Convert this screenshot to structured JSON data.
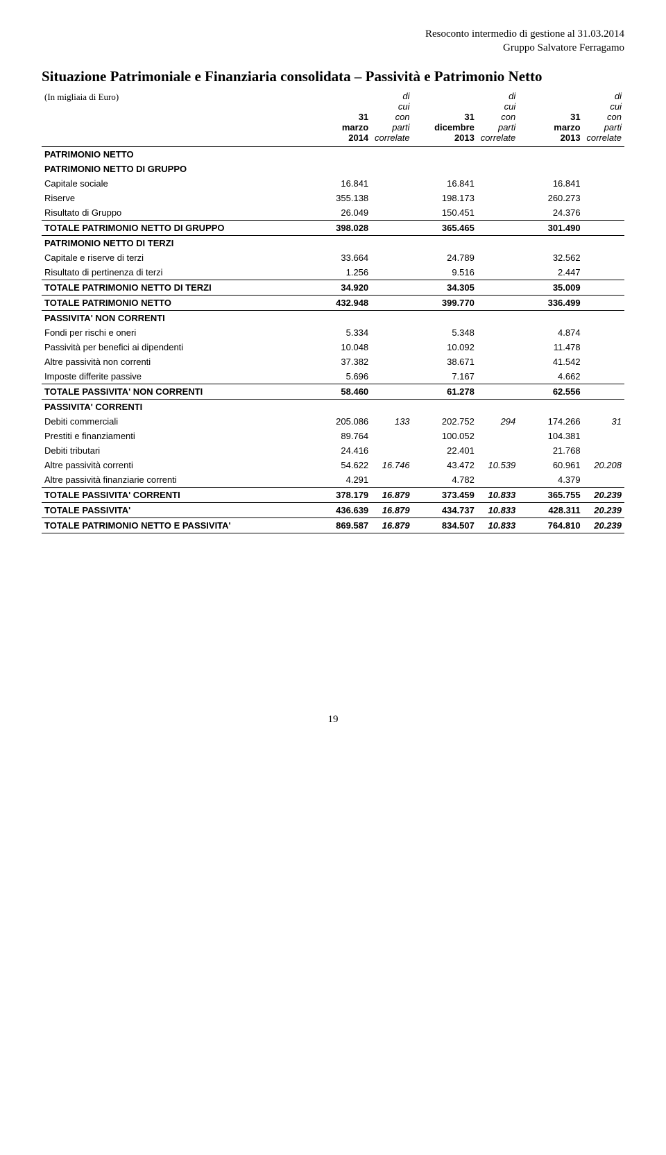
{
  "header": {
    "line1": "Resoconto intermedio di gestione al 31.03.2014",
    "line2": "Gruppo Salvatore Ferragamo"
  },
  "title": "Situazione Patrimoniale e Finanziaria consolidata – Passività e Patrimonio Netto",
  "unit_note": "(In migliaia di Euro)",
  "columns": {
    "c1": "31 marzo 2014",
    "c1n": "di cui con parti correlate",
    "c2": "31 dicembre 2013",
    "c2n": "di cui con parti correlate",
    "c3": "31 marzo 2013",
    "c3n": "di cui con parti correlate"
  },
  "rows": [
    {
      "type": "section",
      "label": "PATRIMONIO NETTO"
    },
    {
      "type": "section",
      "label": "PATRIMONIO NETTO DI GRUPPO"
    },
    {
      "type": "data",
      "label": "Capitale sociale",
      "v1": "16.841",
      "v2": "16.841",
      "v3": "16.841"
    },
    {
      "type": "data",
      "label": "Riserve",
      "v1": "355.138",
      "v2": "198.173",
      "v3": "260.273"
    },
    {
      "type": "data",
      "label": "Risultato di  Gruppo",
      "v1": "26.049",
      "v2": "150.451",
      "v3": "24.376"
    },
    {
      "type": "total",
      "label": "TOTALE PATRIMONIO NETTO DI GRUPPO",
      "v1": "398.028",
      "v2": "365.465",
      "v3": "301.490"
    },
    {
      "type": "section",
      "label": "PATRIMONIO NETTO DI TERZI"
    },
    {
      "type": "data",
      "label": "Capitale e riserve di terzi",
      "v1": "33.664",
      "v2": "24.789",
      "v3": "32.562"
    },
    {
      "type": "data",
      "label": "Risultato di pertinenza di terzi",
      "v1": "1.256",
      "v2": "9.516",
      "v3": "2.447"
    },
    {
      "type": "total",
      "label": "TOTALE PATRIMONIO NETTO DI TERZI",
      "v1": "34.920",
      "v2": "34.305",
      "v3": "35.009"
    },
    {
      "type": "total",
      "label": "TOTALE PATRIMONIO NETTO",
      "v1": "432.948",
      "v2": "399.770",
      "v3": "336.499"
    },
    {
      "type": "section",
      "label": "PASSIVITA' NON CORRENTI"
    },
    {
      "type": "data",
      "label": "Fondi per rischi e oneri",
      "v1": "5.334",
      "v2": "5.348",
      "v3": "4.874"
    },
    {
      "type": "data",
      "label": "Passività per benefici ai dipendenti",
      "v1": "10.048",
      "v2": "10.092",
      "v3": "11.478"
    },
    {
      "type": "data",
      "label": "Altre passività non correnti",
      "v1": "37.382",
      "v2": "38.671",
      "v3": "41.542"
    },
    {
      "type": "data",
      "label": "Imposte differite passive",
      "v1": "5.696",
      "v2": "7.167",
      "v3": "4.662"
    },
    {
      "type": "total",
      "label": "TOTALE PASSIVITA' NON CORRENTI",
      "v1": "58.460",
      "v2": "61.278",
      "v3": "62.556"
    },
    {
      "type": "section",
      "label": " PASSIVITA' CORRENTI"
    },
    {
      "type": "data",
      "label": "Debiti commerciali",
      "v1": "205.086",
      "n1": "133",
      "v2": "202.752",
      "n2": "294",
      "v3": "174.266",
      "n3": "31"
    },
    {
      "type": "data",
      "label": "Prestiti e finanziamenti",
      "v1": "89.764",
      "v2": "100.052",
      "v3": "104.381"
    },
    {
      "type": "data",
      "label": "Debiti tributari",
      "v1": "24.416",
      "v2": "22.401",
      "v3": "21.768"
    },
    {
      "type": "data",
      "label": "Altre passività correnti",
      "v1": "54.622",
      "n1": "16.746",
      "v2": "43.472",
      "n2": "10.539",
      "v3": "60.961",
      "n3": "20.208"
    },
    {
      "type": "data",
      "label": "Altre passività finanziarie correnti",
      "v1": "4.291",
      "v2": "4.782",
      "v3": "4.379"
    },
    {
      "type": "total",
      "label": "TOTALE PASSIVITA' CORRENTI",
      "v1": "378.179",
      "n1": "16.879",
      "v2": "373.459",
      "n2": "10.833",
      "v3": "365.755",
      "n3": "20.239"
    },
    {
      "type": "total",
      "label": "TOTALE PASSIVITA'",
      "v1": "436.639",
      "n1": "16.879",
      "v2": "434.737",
      "n2": "10.833",
      "v3": "428.311",
      "n3": "20.239"
    },
    {
      "type": "grand",
      "label": "TOTALE PATRIMONIO NETTO E PASSIVITA'",
      "v1": "869.587",
      "n1": "16.879",
      "v2": "834.507",
      "n2": "10.833",
      "v3": "764.810",
      "n3": "20.239"
    }
  ],
  "page_number": "19"
}
